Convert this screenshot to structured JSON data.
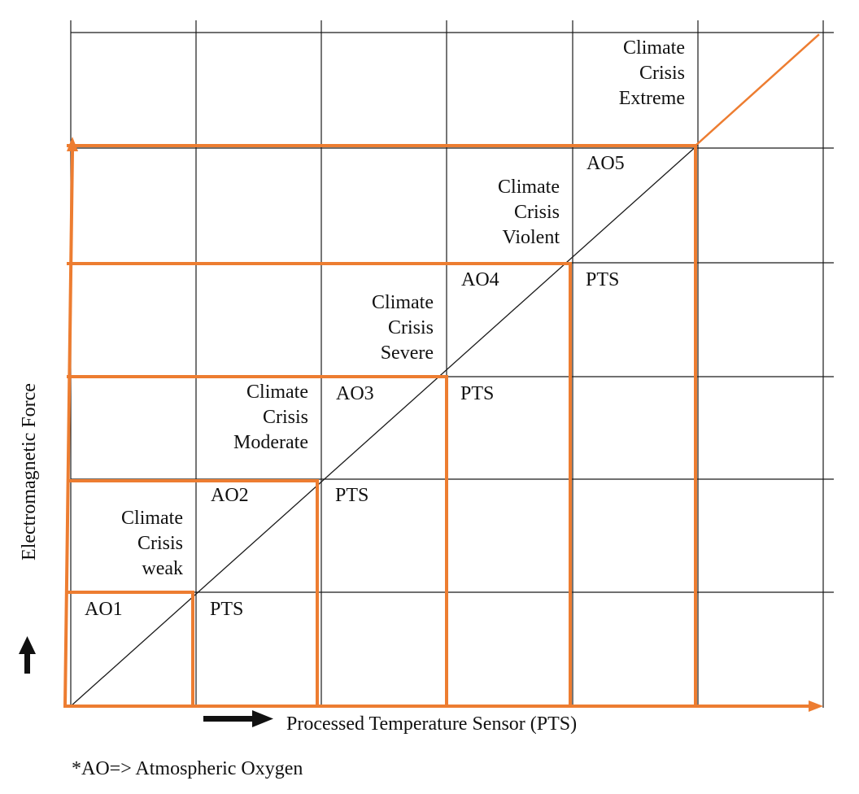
{
  "colors": {
    "accent": "#ed7d31",
    "grid": "#1a1a1a",
    "text": "#111111"
  },
  "icons": {
    "y_arrow": "up-arrow-icon",
    "x_arrow": "right-arrow-icon"
  },
  "y_axis_label": "Electromagnetic Force",
  "x_axis_label": "Processed Temperature Sensor (PTS)",
  "footnote": "*AO=> Atmospheric Oxygen",
  "levels": [
    {
      "ao": "AO1",
      "pts": "PTS",
      "crisis": []
    },
    {
      "ao": "AO2",
      "pts": "PTS",
      "crisis": [
        "Climate",
        "Crisis",
        "weak"
      ]
    },
    {
      "ao": "AO3",
      "pts": "PTS",
      "crisis": [
        "Climate",
        "Crisis",
        "Moderate"
      ]
    },
    {
      "ao": "AO4",
      "pts": "PTS",
      "crisis": [
        "Climate",
        "Crisis",
        "Severe"
      ]
    },
    {
      "ao": "AO5",
      "pts": "PTS",
      "crisis": [
        "Climate",
        "Crisis",
        "Violent"
      ]
    }
  ],
  "extreme_crisis": [
    "Climate",
    "Crisis",
    "Extreme"
  ]
}
